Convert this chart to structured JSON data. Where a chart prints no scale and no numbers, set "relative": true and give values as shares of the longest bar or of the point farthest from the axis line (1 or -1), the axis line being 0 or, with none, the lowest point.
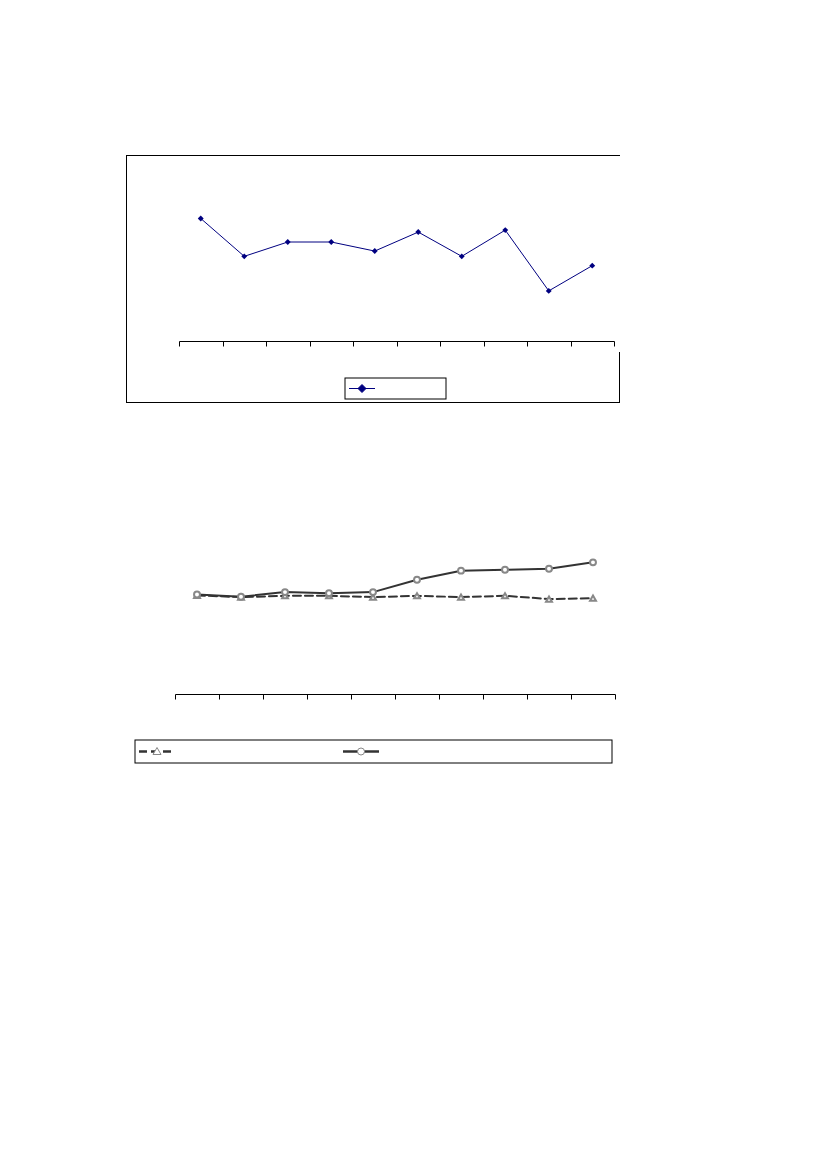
{
  "chart_data": [
    {
      "type": "line",
      "relative": true,
      "categories": [
        null,
        null,
        null,
        null,
        null,
        null,
        null,
        null,
        null,
        null
      ],
      "tick_labels": false,
      "grid": false,
      "series": [
        {
          "color": "#000080",
          "marker": "diamond",
          "line_style": "solid",
          "values": [
            1,
            0.691,
            0.808,
            0.808,
            0.734,
            0.889,
            0.691,
            0.905,
            0.409,
            0.615
          ]
        }
      ]
    },
    {
      "type": "line",
      "relative": true,
      "categories": [
        null,
        null,
        null,
        null,
        null,
        null,
        null,
        null,
        null,
        null
      ],
      "tick_labels": false,
      "grid": false,
      "series": [
        {
          "color": "#333333",
          "marker": "triangle",
          "line_style": "dashed",
          "values": [
            0.749,
            0.736,
            0.746,
            0.746,
            0.736,
            0.746,
            0.736,
            0.746,
            0.721,
            0.728
          ]
        },
        {
          "color": "#333333",
          "marker": "circle",
          "line_style": "solid",
          "values": [
            0.756,
            0.739,
            0.774,
            0.766,
            0.774,
            0.868,
            0.937,
            0.944,
            0.952,
            1
          ]
        }
      ]
    }
  ]
}
